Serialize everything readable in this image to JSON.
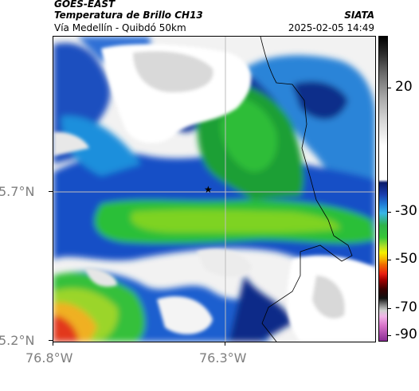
{
  "header": {
    "satellite": "GOES-EAST",
    "product": "Temperatura de Brillo CH13",
    "route": "Vía Medellín - Quibdó 50km",
    "org": "SIATA",
    "datetime": "2025-02-05 14:49"
  },
  "map": {
    "lat_ticks": [
      "5.7°N",
      "5.2°N"
    ],
    "lon_ticks": [
      "76.8°W",
      "76.3°W"
    ],
    "marker_icon": "star-icon"
  },
  "colorbar": {
    "labels": [
      "20",
      "-30",
      "-50",
      "-70",
      "-90"
    ]
  }
}
